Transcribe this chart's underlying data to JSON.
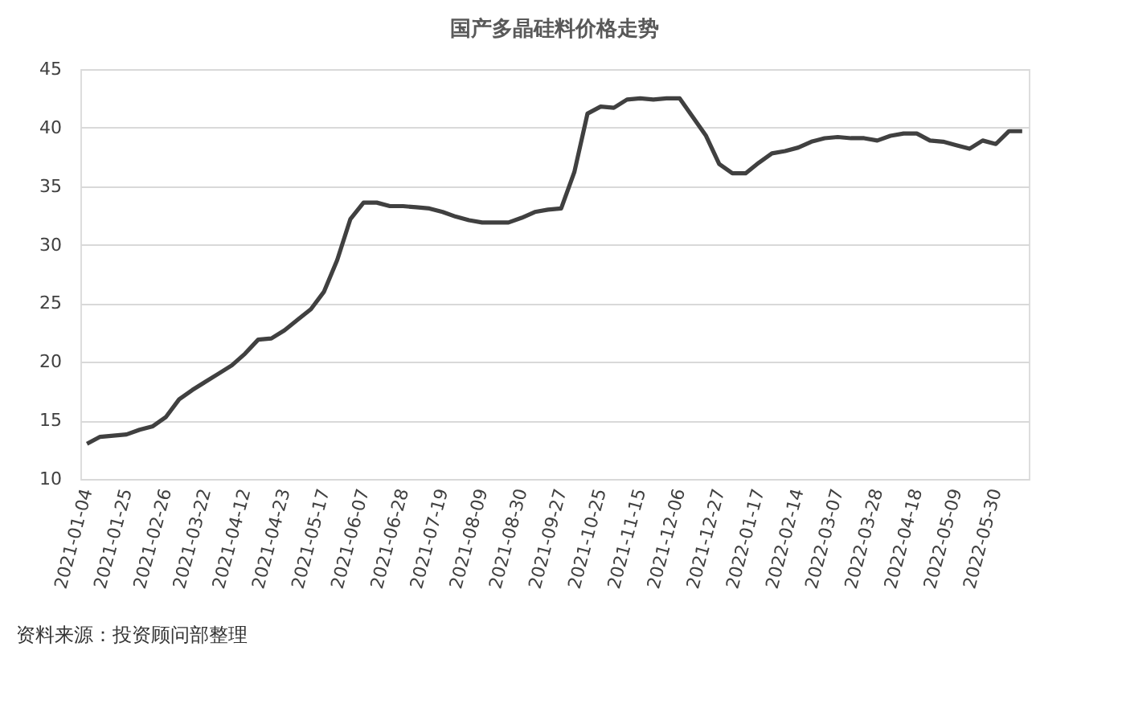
{
  "chart_data": {
    "type": "line",
    "title": "国产多晶硅料价格走势",
    "categories": [
      "2021-01-04",
      null,
      null,
      "2021-01-25",
      null,
      null,
      "2021-02-26",
      null,
      null,
      "2021-03-22",
      null,
      null,
      "2021-04-12",
      null,
      null,
      "2021-04-23",
      null,
      null,
      "2021-05-17",
      null,
      null,
      "2021-06-07",
      null,
      null,
      "2021-06-28",
      null,
      null,
      "2021-07-19",
      null,
      null,
      "2021-08-09",
      null,
      null,
      "2021-08-30",
      null,
      null,
      "2021-09-27",
      null,
      null,
      "2021-10-25",
      null,
      null,
      "2021-11-15",
      null,
      null,
      "2021-12-06",
      null,
      null,
      "2021-12-27",
      null,
      null,
      "2022-01-17",
      null,
      null,
      "2022-02-14",
      null,
      null,
      "2022-03-07",
      null,
      null,
      "2022-03-28",
      null,
      null,
      "2022-04-18",
      null,
      null,
      "2022-05-09",
      null,
      null,
      "2022-05-30",
      null,
      null
    ],
    "series": [
      {
        "color": "#404040",
        "values": [
          13.0,
          13.6,
          13.7,
          13.8,
          14.2,
          14.5,
          15.3,
          16.8,
          17.6,
          18.3,
          19.0,
          19.7,
          20.7,
          21.9,
          22.0,
          22.7,
          23.6,
          24.5,
          26.0,
          28.7,
          32.2,
          33.6,
          33.6,
          33.3,
          33.3,
          33.2,
          33.1,
          32.8,
          32.4,
          32.1,
          31.9,
          31.9,
          31.9,
          32.3,
          32.8,
          33.0,
          33.1,
          36.2,
          41.2,
          41.8,
          41.7,
          42.4,
          42.5,
          42.4,
          42.5,
          42.5,
          40.9,
          39.3,
          36.9,
          36.1,
          36.1,
          37.0,
          37.8,
          38.0,
          38.3,
          38.8,
          39.1,
          39.2,
          39.1,
          39.1,
          38.9,
          39.3,
          39.5,
          39.5,
          38.9,
          38.8,
          38.5,
          38.2,
          38.9,
          38.6,
          39.7,
          39.7
        ]
      }
    ],
    "ylim": [
      10,
      45
    ],
    "yticks": [
      10,
      15,
      20,
      25,
      30,
      35,
      40,
      45
    ],
    "grid": "y",
    "marker": "none",
    "line_style": "solid",
    "annotations": [
      "资料来源：投资顾问部整理"
    ]
  }
}
